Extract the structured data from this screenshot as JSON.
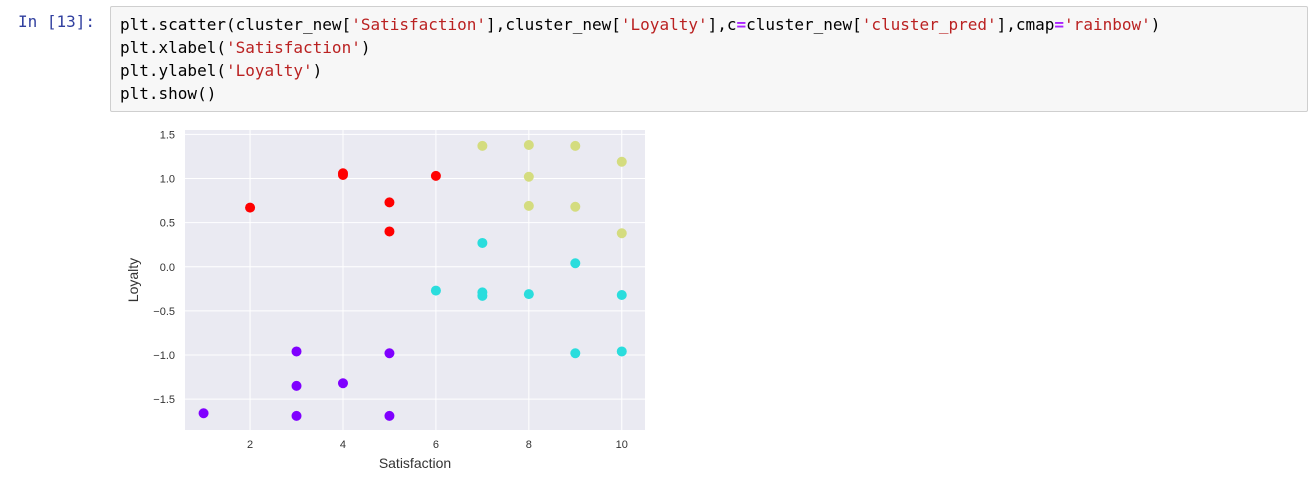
{
  "cell": {
    "prompt": "In [13]:",
    "code": {
      "line1": {
        "p1": "plt.scatter(cluster_new[",
        "s1": "'Satisfaction'",
        "p2": "],cluster_new[",
        "s2": "'Loyalty'",
        "p3": "],c",
        "eq": "=",
        "p4": "cluster_new[",
        "s3": "'cluster_pred'",
        "p5": "],cmap",
        "eq2": "=",
        "s4": "'rainbow'",
        "p6": ")"
      },
      "line2": {
        "p1": "plt.xlabel(",
        "s1": "'Satisfaction'",
        "p2": ")"
      },
      "line3": {
        "p1": "plt.ylabel(",
        "s1": "'Loyalty'",
        "p2": ")"
      },
      "line4": {
        "p1": "plt.show()"
      }
    }
  },
  "chart_data": {
    "type": "scatter",
    "xlabel": "Satisfaction",
    "ylabel": "Loyalty",
    "xlim": [
      0.6,
      10.5
    ],
    "ylim": [
      -1.85,
      1.55
    ],
    "xticks": [
      2,
      4,
      6,
      8,
      10
    ],
    "yticks": [
      1.5,
      1.0,
      0.5,
      0.0,
      -0.5,
      -1.0,
      -1.5
    ],
    "ytick_labels": [
      "1.5",
      "1.0",
      "0.5",
      "0.0",
      "−0.5",
      "−1.0",
      "−1.5"
    ],
    "grid": true,
    "background": "#eaeaf2",
    "colors": {
      "purple": "#8000ff",
      "cyan": "#2adddd",
      "olive": "#d4dc7f",
      "red": "#ff0000"
    },
    "points": [
      {
        "x": 1,
        "y": -1.66,
        "c": "purple"
      },
      {
        "x": 3,
        "y": -0.96,
        "c": "purple"
      },
      {
        "x": 3,
        "y": -1.35,
        "c": "purple"
      },
      {
        "x": 3,
        "y": -1.69,
        "c": "purple"
      },
      {
        "x": 4,
        "y": -1.32,
        "c": "purple"
      },
      {
        "x": 5,
        "y": -0.98,
        "c": "purple"
      },
      {
        "x": 5,
        "y": -1.69,
        "c": "purple"
      },
      {
        "x": 2,
        "y": 0.67,
        "c": "red"
      },
      {
        "x": 4,
        "y": 1.06,
        "c": "red"
      },
      {
        "x": 4,
        "y": 1.04,
        "c": "red"
      },
      {
        "x": 5,
        "y": 0.73,
        "c": "red"
      },
      {
        "x": 5,
        "y": 0.4,
        "c": "red"
      },
      {
        "x": 6,
        "y": 1.03,
        "c": "red"
      },
      {
        "x": 6,
        "y": -0.27,
        "c": "cyan"
      },
      {
        "x": 7,
        "y": 0.27,
        "c": "cyan"
      },
      {
        "x": 7,
        "y": -0.29,
        "c": "cyan"
      },
      {
        "x": 7,
        "y": -0.33,
        "c": "cyan"
      },
      {
        "x": 8,
        "y": -0.31,
        "c": "cyan"
      },
      {
        "x": 9,
        "y": 0.04,
        "c": "cyan"
      },
      {
        "x": 9,
        "y": -0.98,
        "c": "cyan"
      },
      {
        "x": 10,
        "y": -0.32,
        "c": "cyan"
      },
      {
        "x": 10,
        "y": -0.96,
        "c": "cyan"
      },
      {
        "x": 7,
        "y": 1.37,
        "c": "olive"
      },
      {
        "x": 8,
        "y": 1.38,
        "c": "olive"
      },
      {
        "x": 8,
        "y": 1.02,
        "c": "olive"
      },
      {
        "x": 8,
        "y": 0.69,
        "c": "olive"
      },
      {
        "x": 9,
        "y": 1.37,
        "c": "olive"
      },
      {
        "x": 9,
        "y": 0.68,
        "c": "olive"
      },
      {
        "x": 10,
        "y": 1.19,
        "c": "olive"
      },
      {
        "x": 10,
        "y": 0.38,
        "c": "olive"
      }
    ]
  }
}
